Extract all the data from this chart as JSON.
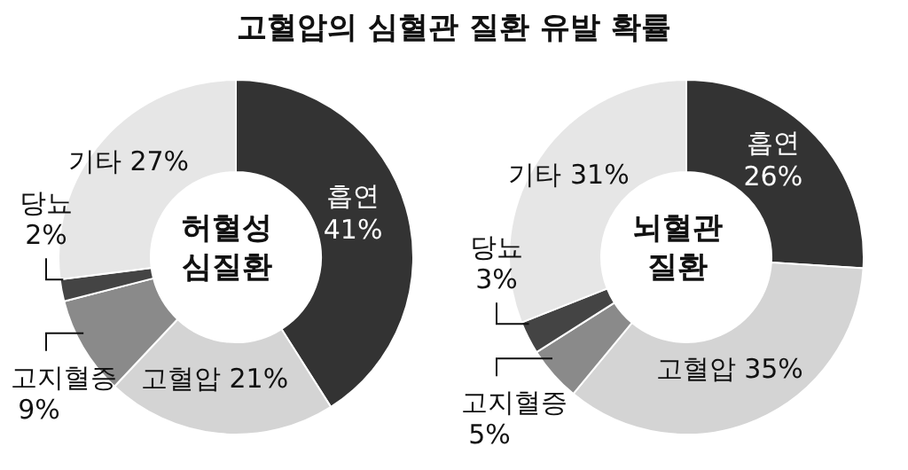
{
  "chart_data": [
    {
      "type": "donut",
      "title": "고혈압의 심혈관 질환 유발 확률",
      "subtitle": "허혈성 심질환",
      "categories": [
        "흡연",
        "고혈압",
        "고지혈증",
        "당뇨",
        "기타"
      ],
      "values": [
        41,
        21,
        9,
        2,
        27
      ],
      "value_labels": [
        "41%",
        "21%",
        "9%",
        "2%",
        "27%"
      ],
      "colors": [
        "#333333",
        "#d4d4d4",
        "#8a8a8a",
        "#444444",
        "#e6e6e6"
      ]
    },
    {
      "type": "donut",
      "subtitle": "뇌혈관 질환",
      "categories": [
        "흡연",
        "고혈압",
        "고지혈증",
        "당뇨",
        "기타"
      ],
      "values": [
        26,
        35,
        5,
        3,
        31
      ],
      "value_labels": [
        "26%",
        "35%",
        "5%",
        "3%",
        "31%"
      ],
      "colors": [
        "#333333",
        "#d4d4d4",
        "#8a8a8a",
        "#444444",
        "#e6e6e6"
      ]
    }
  ]
}
